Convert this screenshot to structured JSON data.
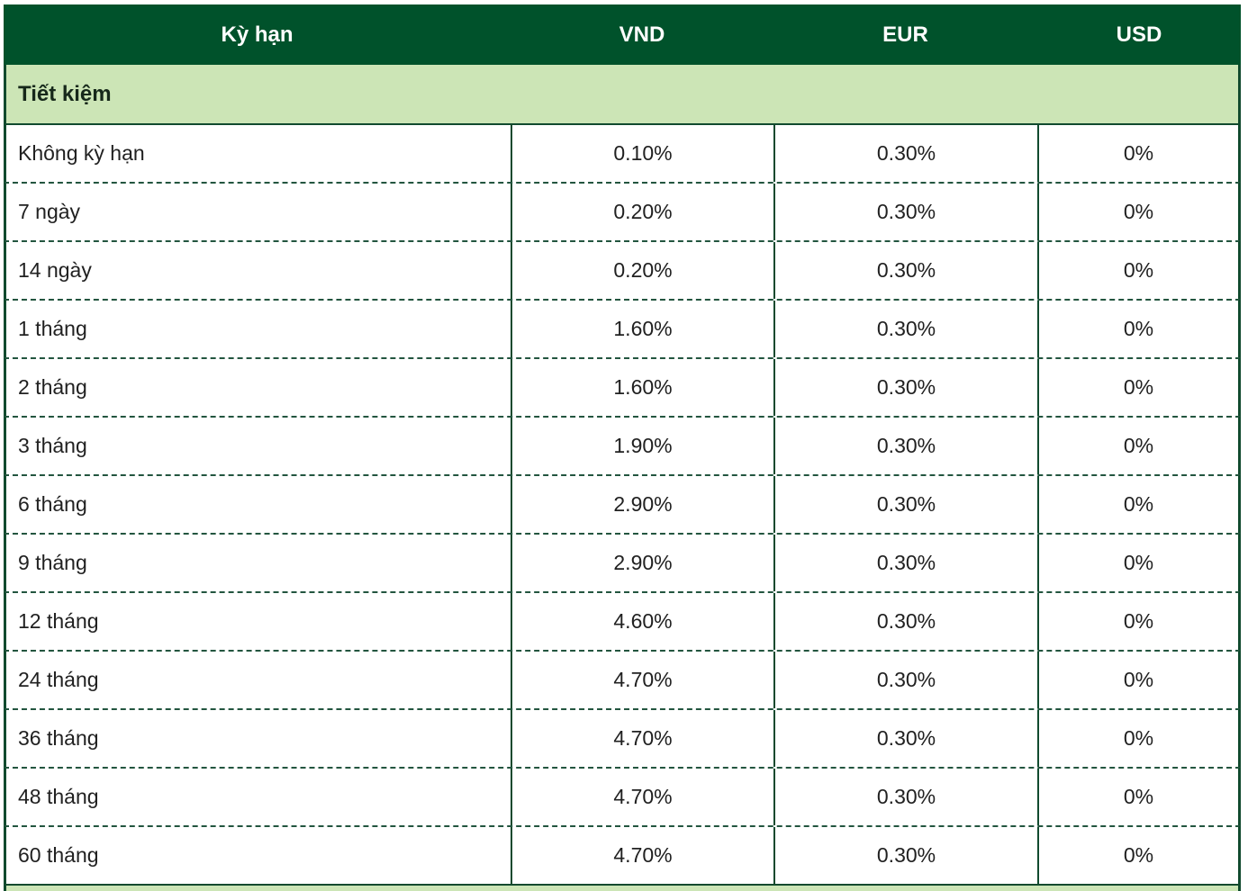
{
  "table": {
    "columns": {
      "term": "Kỳ hạn",
      "vnd": "VND",
      "eur": "EUR",
      "usd": "USD"
    },
    "section_title": "Tiết kiệm",
    "rows": [
      {
        "term": "Không kỳ hạn",
        "vnd": "0.10%",
        "eur": "0.30%",
        "usd": "0%"
      },
      {
        "term": "7 ngày",
        "vnd": "0.20%",
        "eur": "0.30%",
        "usd": "0%"
      },
      {
        "term": "14 ngày",
        "vnd": "0.20%",
        "eur": "0.30%",
        "usd": "0%"
      },
      {
        "term": "1 tháng",
        "vnd": "1.60%",
        "eur": "0.30%",
        "usd": "0%"
      },
      {
        "term": "2 tháng",
        "vnd": "1.60%",
        "eur": "0.30%",
        "usd": "0%"
      },
      {
        "term": "3 tháng",
        "vnd": "1.90%",
        "eur": "0.30%",
        "usd": "0%"
      },
      {
        "term": "6 tháng",
        "vnd": "2.90%",
        "eur": "0.30%",
        "usd": "0%"
      },
      {
        "term": "9 tháng",
        "vnd": "2.90%",
        "eur": "0.30%",
        "usd": "0%"
      },
      {
        "term": "12 tháng",
        "vnd": "4.60%",
        "eur": "0.30%",
        "usd": "0%"
      },
      {
        "term": "24 tháng",
        "vnd": "4.70%",
        "eur": "0.30%",
        "usd": "0%"
      },
      {
        "term": "36 tháng",
        "vnd": "4.70%",
        "eur": "0.30%",
        "usd": "0%"
      },
      {
        "term": "48 tháng",
        "vnd": "4.70%",
        "eur": "0.30%",
        "usd": "0%"
      },
      {
        "term": "60 tháng",
        "vnd": "4.70%",
        "eur": "0.30%",
        "usd": "0%"
      }
    ],
    "colors": {
      "header_bg": "#00522b",
      "section_bg": "#cce5b6",
      "border_solid": "#114a2e",
      "border_dashed": "#23553f",
      "header_text": "#ffffff",
      "body_text": "#212121"
    }
  }
}
